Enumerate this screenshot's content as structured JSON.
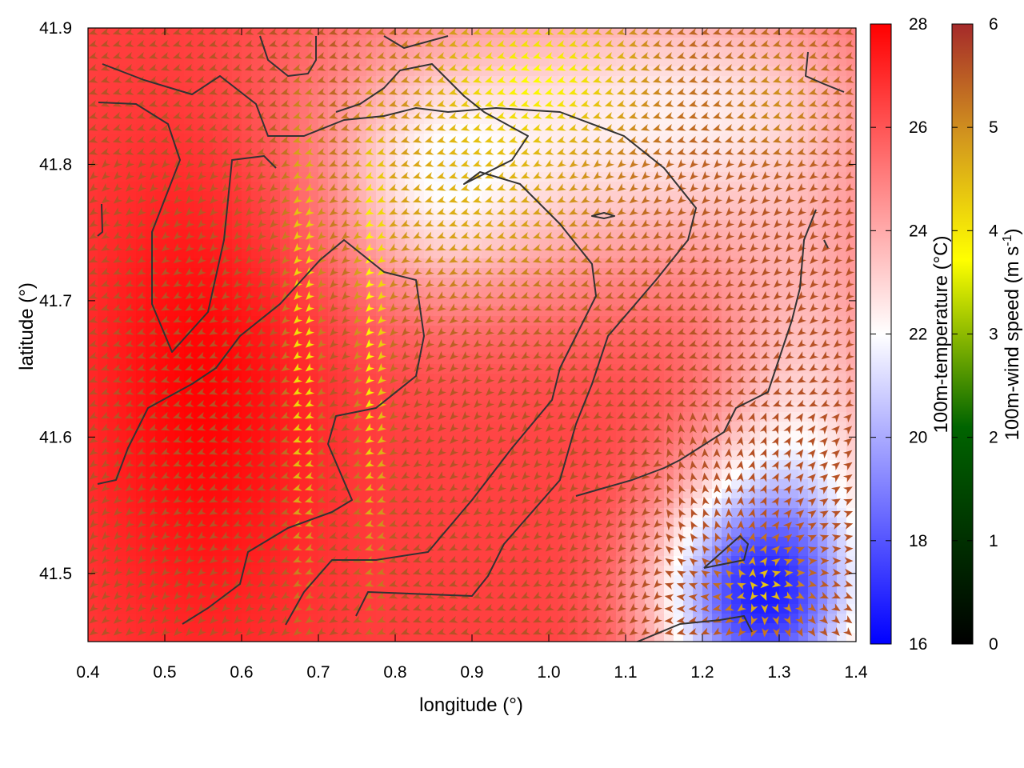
{
  "chart_data": {
    "type": "heatmap",
    "xlabel": "longitude (°)",
    "ylabel": "latitude (°)",
    "xlim": [
      0.4,
      1.4
    ],
    "ylim": [
      41.45,
      41.9
    ],
    "x_ticks": [
      "0.4",
      "0.5",
      "0.6",
      "0.7",
      "0.8",
      "0.9",
      "1.0",
      "1.1",
      "1.2",
      "1.3",
      "1.4"
    ],
    "y_ticks": [
      "41.5",
      "41.6",
      "41.7",
      "41.8",
      "41.9"
    ],
    "temperature_colorbar": {
      "label": "100m-temperature (°C)",
      "range": [
        16,
        28
      ],
      "ticks": [
        "16",
        "18",
        "20",
        "22",
        "24",
        "26",
        "28"
      ],
      "colors": [
        "#0000ff",
        "#ffffff",
        "#ff0000"
      ]
    },
    "wind_colorbar": {
      "label_main": "100m-wind speed (m s",
      "label_sup": "-1",
      "label_end": ")",
      "range": [
        0,
        6
      ],
      "ticks": [
        "0",
        "1",
        "2",
        "3",
        "4",
        "5",
        "6"
      ],
      "colors": [
        "#000000",
        "#006400",
        "#ffff00",
        "#d2951e",
        "#a52a2a"
      ]
    },
    "contour_color": "#333333",
    "grid": false
  }
}
